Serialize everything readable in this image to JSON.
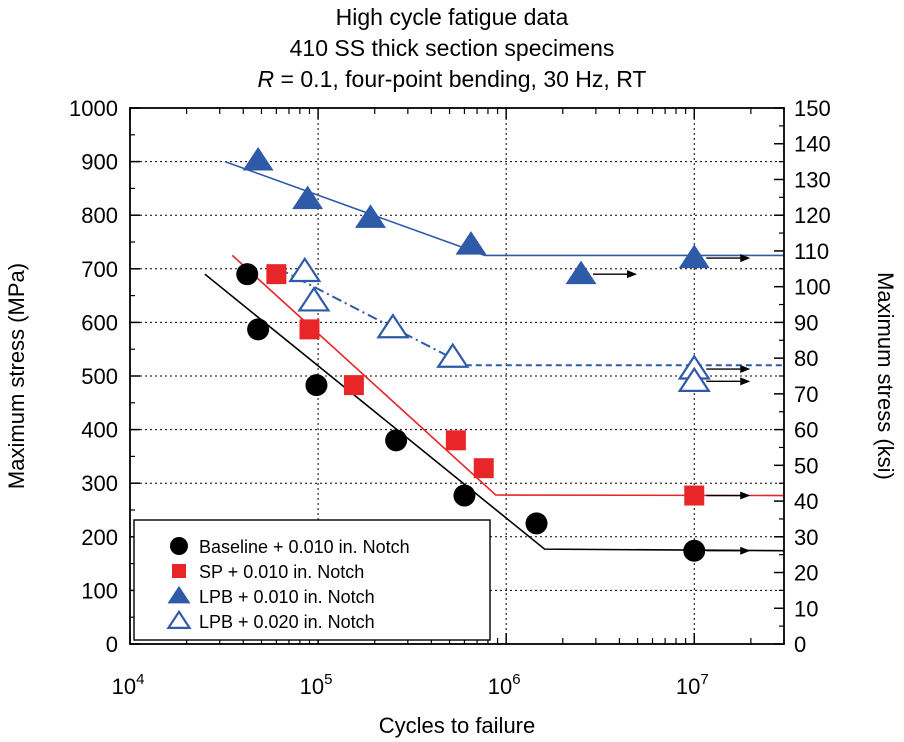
{
  "chart_data": {
    "type": "scatter",
    "title_lines": [
      "High cycle fatigue data",
      "410 SS thick section specimens"
    ],
    "conditions": {
      "r_symbol": "R",
      "r_rest": " = 0.1, four-point bending, 30 Hz, RT"
    },
    "xlabel": "Cycles to failure",
    "ylabel_left": "Maximum stress (MPa)",
    "ylabel_right": "Maximum stress (ksi)",
    "x_scale": "log",
    "xlim": [
      10000,
      30000000
    ],
    "x_ticks": [
      {
        "value": 10000,
        "base": "10",
        "exp": "4"
      },
      {
        "value": 100000,
        "base": "10",
        "exp": "5"
      },
      {
        "value": 1000000,
        "base": "10",
        "exp": "6"
      },
      {
        "value": 10000000,
        "base": "10",
        "exp": "7"
      }
    ],
    "ylim_left": [
      0,
      1000
    ],
    "y_ticks_left": [
      "0",
      "100",
      "200",
      "300",
      "400",
      "500",
      "600",
      "700",
      "800",
      "900",
      "1000"
    ],
    "ylim_right": [
      0,
      150
    ],
    "y_ticks_right": [
      "0",
      "10",
      "20",
      "30",
      "40",
      "50",
      "60",
      "70",
      "80",
      "90",
      "100",
      "110",
      "120",
      "130",
      "140",
      "150"
    ],
    "grid": "dotted",
    "legend_position": "bottom-left",
    "series": [
      {
        "name": "Baseline + 0.010 in. Notch",
        "marker": "circle",
        "color": "#000000",
        "points": [
          [
            42000,
            690
          ],
          [
            48000,
            587
          ],
          [
            98000,
            483
          ],
          [
            260000,
            380
          ],
          [
            600000,
            277
          ],
          [
            1450000,
            225
          ],
          [
            10000000,
            174,
            "runout"
          ]
        ],
        "fit": [
          [
            25000,
            690
          ],
          [
            1600000,
            177
          ],
          [
            30000000,
            174
          ]
        ],
        "fit_style": "solid"
      },
      {
        "name": "SP + 0.010 in. Notch",
        "marker": "square",
        "color": "#e8262a",
        "points": [
          [
            60000,
            690
          ],
          [
            90000,
            587
          ],
          [
            155000,
            483
          ],
          [
            540000,
            380
          ],
          [
            760000,
            328
          ],
          [
            10000000,
            277,
            "runout"
          ]
        ],
        "fit": [
          [
            35000,
            725
          ],
          [
            880000,
            278
          ],
          [
            30000000,
            277
          ]
        ],
        "fit_style": "solid"
      },
      {
        "name": "LPB + 0.010 in. Notch",
        "marker": "triangle",
        "color": "#2f5aa8",
        "points": [
          [
            48000,
            902
          ],
          [
            88000,
            830
          ],
          [
            190000,
            795
          ],
          [
            650000,
            745
          ],
          [
            2500000,
            690,
            "runout"
          ],
          [
            10000000,
            720,
            "runout"
          ]
        ],
        "fit": [
          [
            32000,
            900
          ],
          [
            770000,
            725
          ],
          [
            30000000,
            725
          ]
        ],
        "fit_style": "solid"
      },
      {
        "name": "LPB + 0.020 in. Notch",
        "marker": "triangle-open",
        "color": "#2f5aa8",
        "points": [
          [
            85000,
            695
          ],
          [
            95000,
            640
          ],
          [
            250000,
            590
          ],
          [
            520000,
            535
          ],
          [
            10000000,
            513,
            "runout"
          ],
          [
            10000000,
            490,
            "runout"
          ]
        ],
        "fit": [
          [
            62000,
            700
          ],
          [
            610000,
            520
          ],
          [
            30000000,
            520
          ]
        ],
        "fit_style": "dashdot-then-dashed"
      }
    ]
  }
}
